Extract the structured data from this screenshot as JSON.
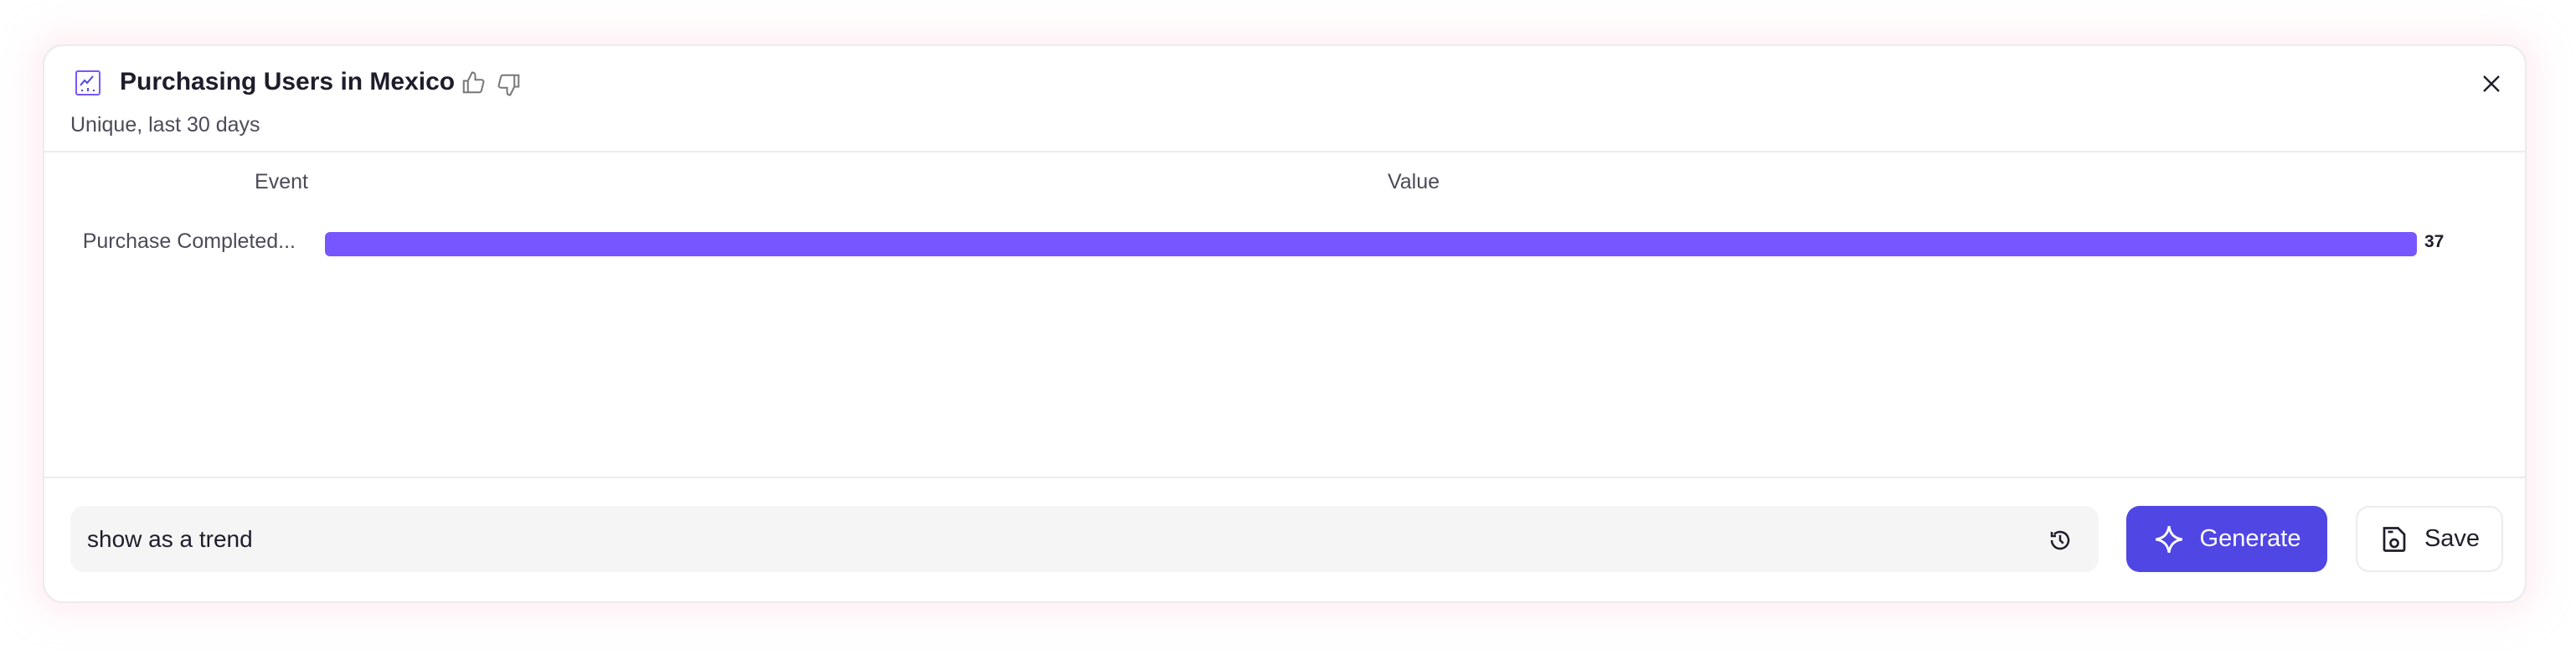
{
  "header": {
    "title": "Purchasing Users in Mexico",
    "subtitle": "Unique, last 30 days",
    "icon": "line-chart-icon"
  },
  "table": {
    "columns": [
      "Event",
      "Value"
    ]
  },
  "chart_data": {
    "type": "bar",
    "orientation": "horizontal",
    "categories": [
      "Purchase Completed..."
    ],
    "values": [
      37
    ],
    "xlabel": "Value",
    "ylabel": "Event",
    "data_labels": [
      "37"
    ],
    "color": "#7856ff"
  },
  "prompt": {
    "value": "show as a trend",
    "placeholder": ""
  },
  "buttons": {
    "generate": "Generate",
    "save": "Save"
  },
  "colors": {
    "accent": "#5046e4",
    "bar": "#7856ff"
  }
}
